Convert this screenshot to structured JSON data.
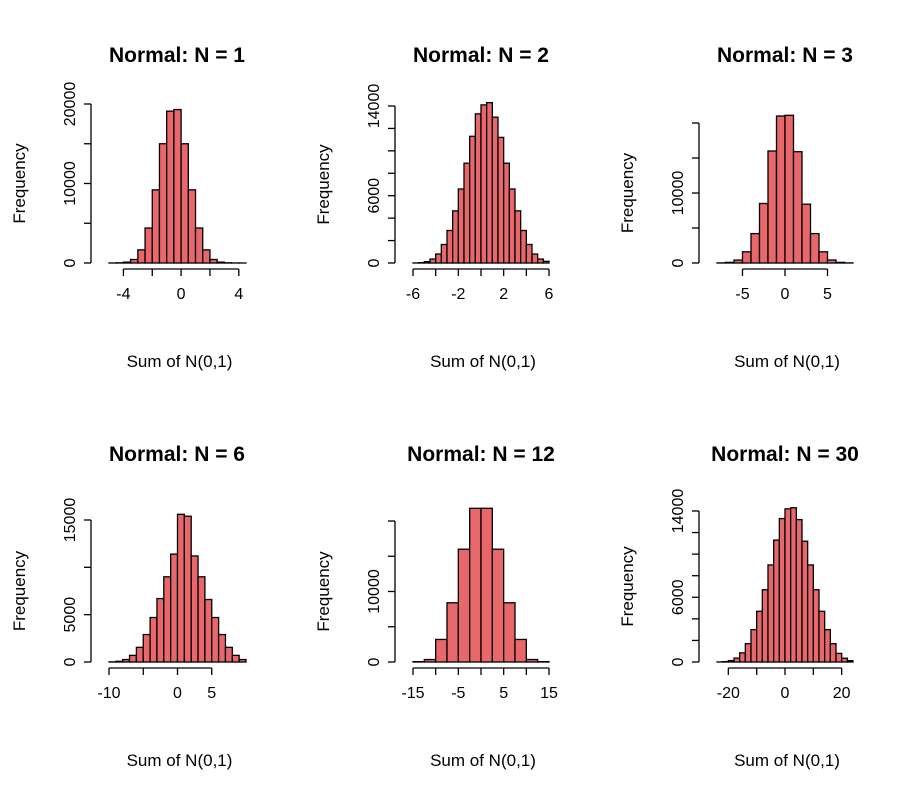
{
  "chart_data": [
    {
      "type": "bar",
      "title": "Normal: N = 1",
      "xlabel": "Sum of N(0,1)",
      "ylabel": "Frequency",
      "bar_color": "#e8676b",
      "x_ticks": [
        -4,
        -2,
        0,
        2,
        4
      ],
      "x_tick_labels": [
        "-4",
        "",
        "0",
        "",
        "4"
      ],
      "y_ticks": [
        0,
        10000,
        20000
      ],
      "y_tick_labels": [
        "0",
        "10000",
        "20000"
      ],
      "y_minor_ticks": [
        5000,
        15000
      ],
      "xlim": [
        -5,
        4.5
      ],
      "ylim": [
        0,
        20000
      ],
      "bin_edges": [
        -5,
        -4.5,
        -4,
        -3.5,
        -3,
        -2.5,
        -2,
        -1.5,
        -1,
        -0.5,
        0,
        0.5,
        1,
        1.5,
        2,
        2.5,
        3,
        3.5,
        4,
        4.5
      ],
      "values": [
        2,
        25,
        110,
        440,
        1650,
        4400,
        9200,
        15000,
        19100,
        19300,
        15000,
        9200,
        4400,
        1650,
        440,
        110,
        25,
        5,
        1
      ]
    },
    {
      "type": "bar",
      "title": "Normal: N = 2",
      "xlabel": "Sum of N(0,1)",
      "ylabel": "Frequency",
      "bar_color": "#e8676b",
      "x_ticks": [
        -6,
        -4,
        -2,
        0,
        2,
        4,
        6
      ],
      "x_tick_labels": [
        "-6",
        "",
        "-2",
        "",
        "2",
        "",
        "6"
      ],
      "y_ticks": [
        0,
        6000,
        14000
      ],
      "y_tick_labels": [
        "0",
        "6000",
        "14000"
      ],
      "y_minor_ticks": [
        2000,
        4000,
        8000,
        10000,
        12000
      ],
      "xlim": [
        -6,
        6
      ],
      "ylim": [
        0,
        14000
      ],
      "bin_edges": [
        -6,
        -5.5,
        -5,
        -4.5,
        -4,
        -3.5,
        -3,
        -2.5,
        -2,
        -1.5,
        -1,
        -0.5,
        0,
        0.5,
        1,
        1.5,
        2,
        2.5,
        3,
        3.5,
        4,
        4.5,
        5,
        5.5,
        6
      ],
      "values": [
        5,
        30,
        120,
        350,
        800,
        1650,
        2900,
        4650,
        6600,
        8900,
        11300,
        13300,
        14100,
        14300,
        13000,
        11200,
        8900,
        6600,
        4650,
        2900,
        1650,
        800,
        350,
        150
      ]
    },
    {
      "type": "bar",
      "title": "Normal: N = 3",
      "xlabel": "Sum of N(0,1)",
      "ylabel": "Frequency",
      "bar_color": "#e8676b",
      "x_ticks": [
        -5,
        0,
        5
      ],
      "x_tick_labels": [
        "-5",
        "0",
        "5"
      ],
      "y_ticks": [
        0,
        10000
      ],
      "y_tick_labels": [
        "0",
        "10000"
      ],
      "y_minor_ticks": [
        5000,
        15000,
        20000
      ],
      "xlim": [
        -8,
        8
      ],
      "ylim": [
        0,
        20000
      ],
      "bin_edges": [
        -8,
        -7,
        -6,
        -5,
        -4,
        -3,
        -2,
        -1,
        0,
        1,
        2,
        3,
        4,
        5,
        6,
        7,
        8
      ],
      "values": [
        15,
        90,
        420,
        1600,
        4200,
        8500,
        16000,
        21000,
        21100,
        15900,
        8400,
        4200,
        1600,
        430,
        90,
        15
      ]
    },
    {
      "type": "bar",
      "title": "Normal: N = 6",
      "xlabel": "Sum of N(0,1)",
      "ylabel": "Frequency",
      "bar_color": "#e8676b",
      "x_ticks": [
        -10,
        -5,
        0,
        5
      ],
      "x_tick_labels": [
        "-10",
        "",
        "0",
        "5"
      ],
      "y_ticks": [
        0,
        5000,
        15000
      ],
      "y_tick_labels": [
        "0",
        "5000",
        "15000"
      ],
      "y_minor_ticks": [
        10000
      ],
      "xlim": [
        -10,
        10
      ],
      "ylim": [
        0,
        15000
      ],
      "bin_edges": [
        -10,
        -9,
        -8,
        -7,
        -6,
        -5,
        -4,
        -3,
        -2,
        -1,
        0,
        1,
        2,
        3,
        4,
        5,
        6,
        7,
        8,
        9,
        10
      ],
      "values": [
        15,
        75,
        260,
        700,
        1550,
        2900,
        4700,
        6700,
        9000,
        11400,
        15600,
        15400,
        11200,
        9000,
        6600,
        4700,
        2900,
        1550,
        700,
        260
      ]
    },
    {
      "type": "bar",
      "title": "Normal: N = 12",
      "xlabel": "Sum of N(0,1)",
      "ylabel": "Frequency",
      "bar_color": "#e8676b",
      "x_ticks": [
        -15,
        -10,
        -5,
        0,
        5,
        10,
        15
      ],
      "x_tick_labels": [
        "-15",
        "",
        "-5",
        "",
        "5",
        "",
        "15"
      ],
      "y_ticks": [
        0,
        10000
      ],
      "y_tick_labels": [
        "0",
        "10000"
      ],
      "y_minor_ticks": [
        5000,
        15000,
        20000
      ],
      "xlim": [
        -15,
        15
      ],
      "ylim": [
        0,
        20000
      ],
      "bin_edges": [
        -15,
        -12.5,
        -10,
        -7.5,
        -5,
        -2.5,
        0,
        2.5,
        5,
        7.5,
        10,
        12.5,
        15
      ],
      "values": [
        50,
        350,
        3200,
        8400,
        16000,
        21800,
        21800,
        16000,
        8400,
        3200,
        350,
        50
      ]
    },
    {
      "type": "bar",
      "title": "Normal: N = 30",
      "xlabel": "Sum of N(0,1)",
      "ylabel": "Frequency",
      "bar_color": "#e8676b",
      "x_ticks": [
        -20,
        -10,
        0,
        10,
        20
      ],
      "x_tick_labels": [
        "-20",
        "",
        "0",
        "",
        "20"
      ],
      "y_ticks": [
        0,
        6000,
        14000
      ],
      "y_tick_labels": [
        "0",
        "6000",
        "14000"
      ],
      "y_minor_ticks": [
        2000,
        4000,
        8000,
        10000,
        12000
      ],
      "xlim": [
        -24,
        24
      ],
      "ylim": [
        0,
        14000
      ],
      "bin_edges": [
        -24,
        -22,
        -20,
        -18,
        -16,
        -14,
        -12,
        -10,
        -8,
        -6,
        -4,
        -2,
        0,
        2,
        4,
        6,
        8,
        10,
        12,
        14,
        16,
        18,
        20,
        22,
        24
      ],
      "values": [
        5,
        35,
        130,
        360,
        850,
        1700,
        3000,
        4700,
        6700,
        9000,
        11300,
        13300,
        14200,
        14300,
        13200,
        11200,
        9000,
        6700,
        4700,
        3000,
        1700,
        800,
        350,
        120
      ]
    }
  ]
}
